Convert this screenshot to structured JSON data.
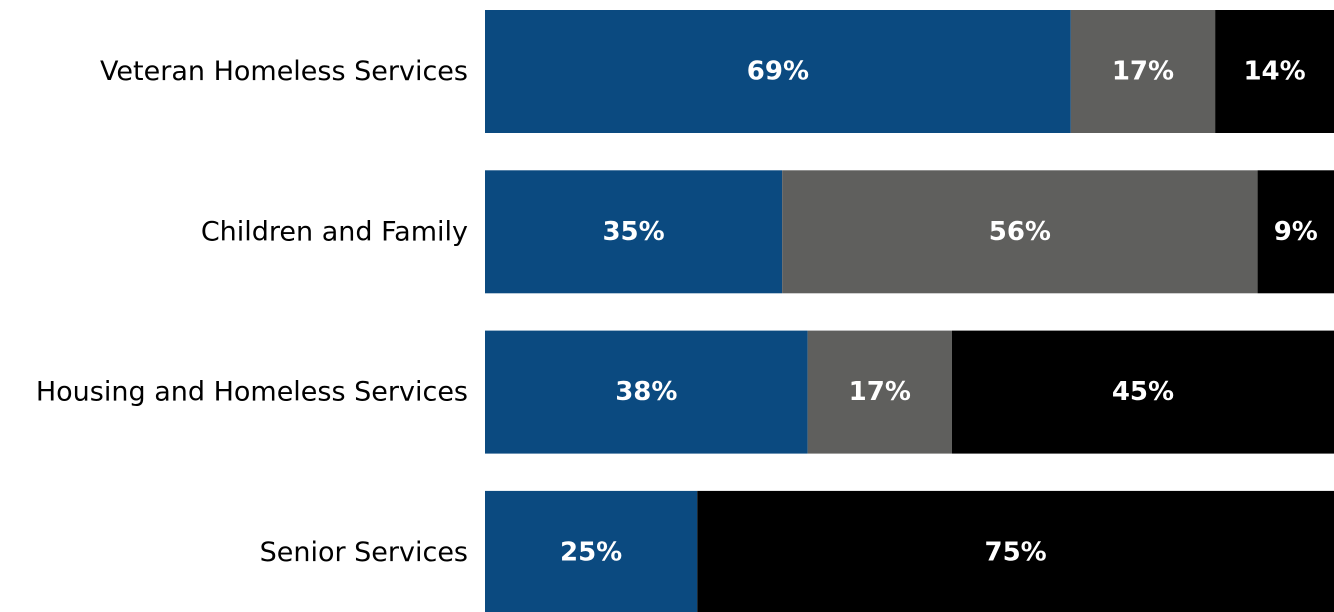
{
  "chart_data": {
    "type": "bar",
    "orientation": "horizontal",
    "stacked": true,
    "title": "",
    "xlabel": "",
    "ylabel": "",
    "xlim": [
      0,
      100
    ],
    "grid": false,
    "legend": "none",
    "categories": [
      "Veteran Homeless Services",
      "Children and Family",
      "Housing and Homeless Services",
      "Senior Services"
    ],
    "series": [
      {
        "color": "#0b4a80",
        "values": [
          69,
          35,
          38,
          25
        ],
        "labels": [
          "69%",
          "35%",
          "38%",
          "25%"
        ]
      },
      {
        "color": "#5f5f5d",
        "values": [
          17,
          56,
          17,
          0
        ],
        "labels": [
          "17%",
          "56%",
          "17%",
          ""
        ]
      },
      {
        "color": "#000000",
        "values": [
          14,
          9,
          45,
          75
        ],
        "labels": [
          "14%",
          "9%",
          "45%",
          "75%"
        ]
      }
    ]
  }
}
